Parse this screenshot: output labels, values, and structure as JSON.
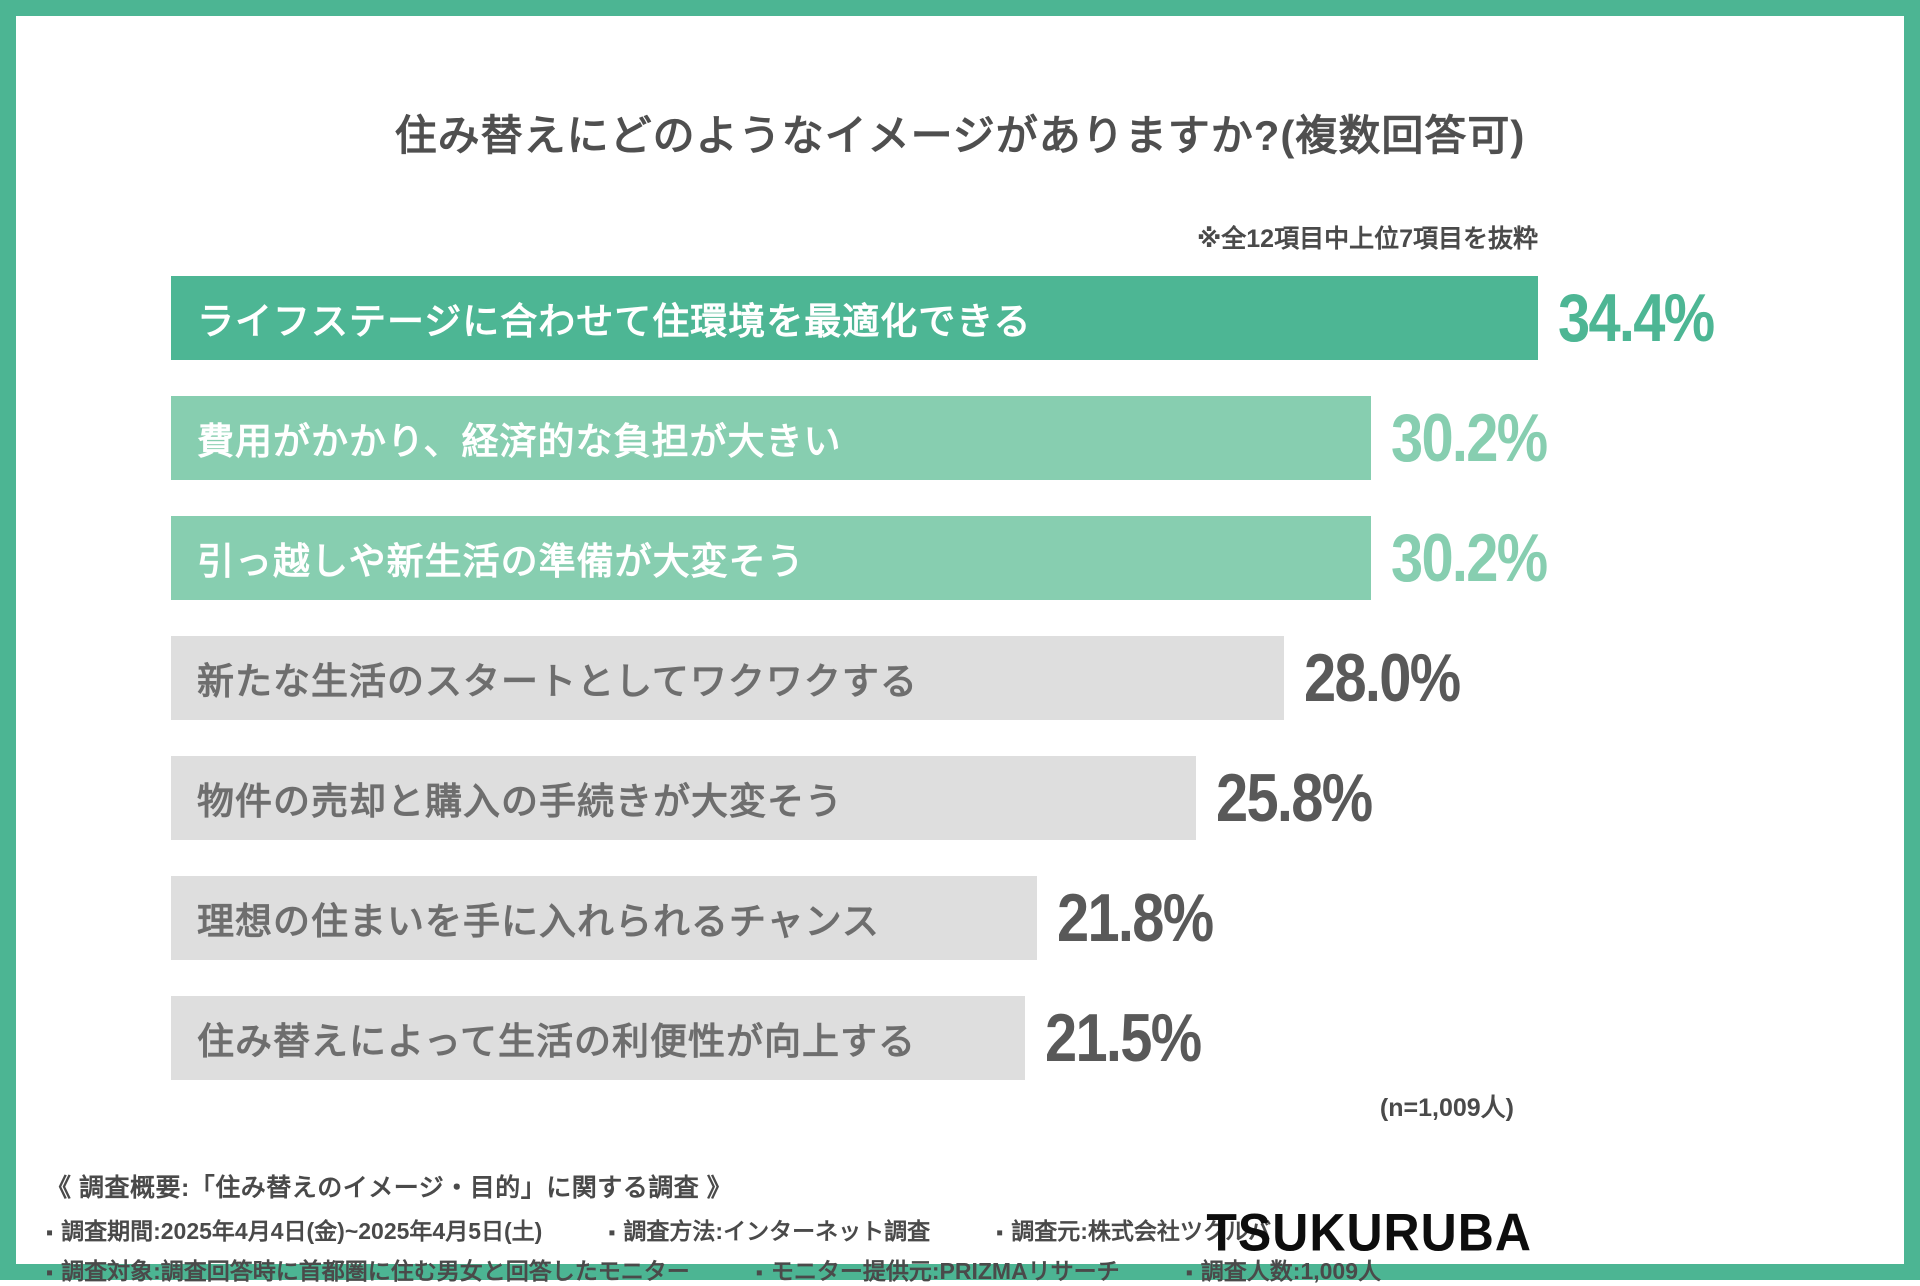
{
  "title": "住み替えにどのようなイメージがありますか?(複数回答可)",
  "note": "※全12項目中上位7項目を抜粋",
  "sample_size_label": "(n=1,009人)",
  "chart_data": {
    "type": "bar",
    "orientation": "horizontal",
    "unit": "%",
    "xlim": [
      0,
      34.4
    ],
    "grid": false,
    "legend": "none",
    "categories": [
      "ライフステージに合わせて住環境を最適化できる",
      "費用がかかり、経済的な負担が大きい",
      "引っ越しや新生活の準備が大変そう",
      "新たな生活のスタートとしてワクワクする",
      "物件の売却と購入の手続きが大変そう",
      "理想の住まいを手に入れられるチャンス",
      "住み替えによって生活の利便性が向上する"
    ],
    "values": [
      34.4,
      30.2,
      30.2,
      28.0,
      25.8,
      21.8,
      21.5
    ],
    "value_labels": [
      "34.4%",
      "30.2%",
      "30.2%",
      "28.0%",
      "25.8%",
      "21.8%",
      "21.5%"
    ],
    "bar_colors": [
      "#4db694",
      "#87ceb0",
      "#87ceb0",
      "#dedede",
      "#dedede",
      "#dedede",
      "#dedede"
    ],
    "label_colors": [
      "#ffffff",
      "#ffffff",
      "#ffffff",
      "#6e6e6e",
      "#6e6e6e",
      "#6e6e6e",
      "#6e6e6e"
    ],
    "value_colors": [
      "#4db694",
      "#87ceb0",
      "#87ceb0",
      "#595959",
      "#595959",
      "#595959",
      "#595959"
    ]
  },
  "footer": {
    "summary": "《 調査概要:「住み替えのイメージ・目的」に関する調査 》",
    "bullet": "▪",
    "row1": [
      "調査期間:2025年4月4日(金)~2025年4月5日(土)",
      "調査方法:インターネット調査",
      "調査元:株式会社ツクルバ"
    ],
    "row2": [
      "調査対象:調査回答時に首都圏に住む男女と回答したモニター",
      "モニター提供元:PRIZMAリサーチ",
      "調査人数:1,009人"
    ],
    "logo": "TSUKURUBA"
  },
  "colors": {
    "frame": "#4cb593",
    "title_text": "#4f4f4f",
    "note_text": "#4a4a4a",
    "footer_text": "#4a4a4a",
    "logo_text": "#0d0d0d"
  }
}
